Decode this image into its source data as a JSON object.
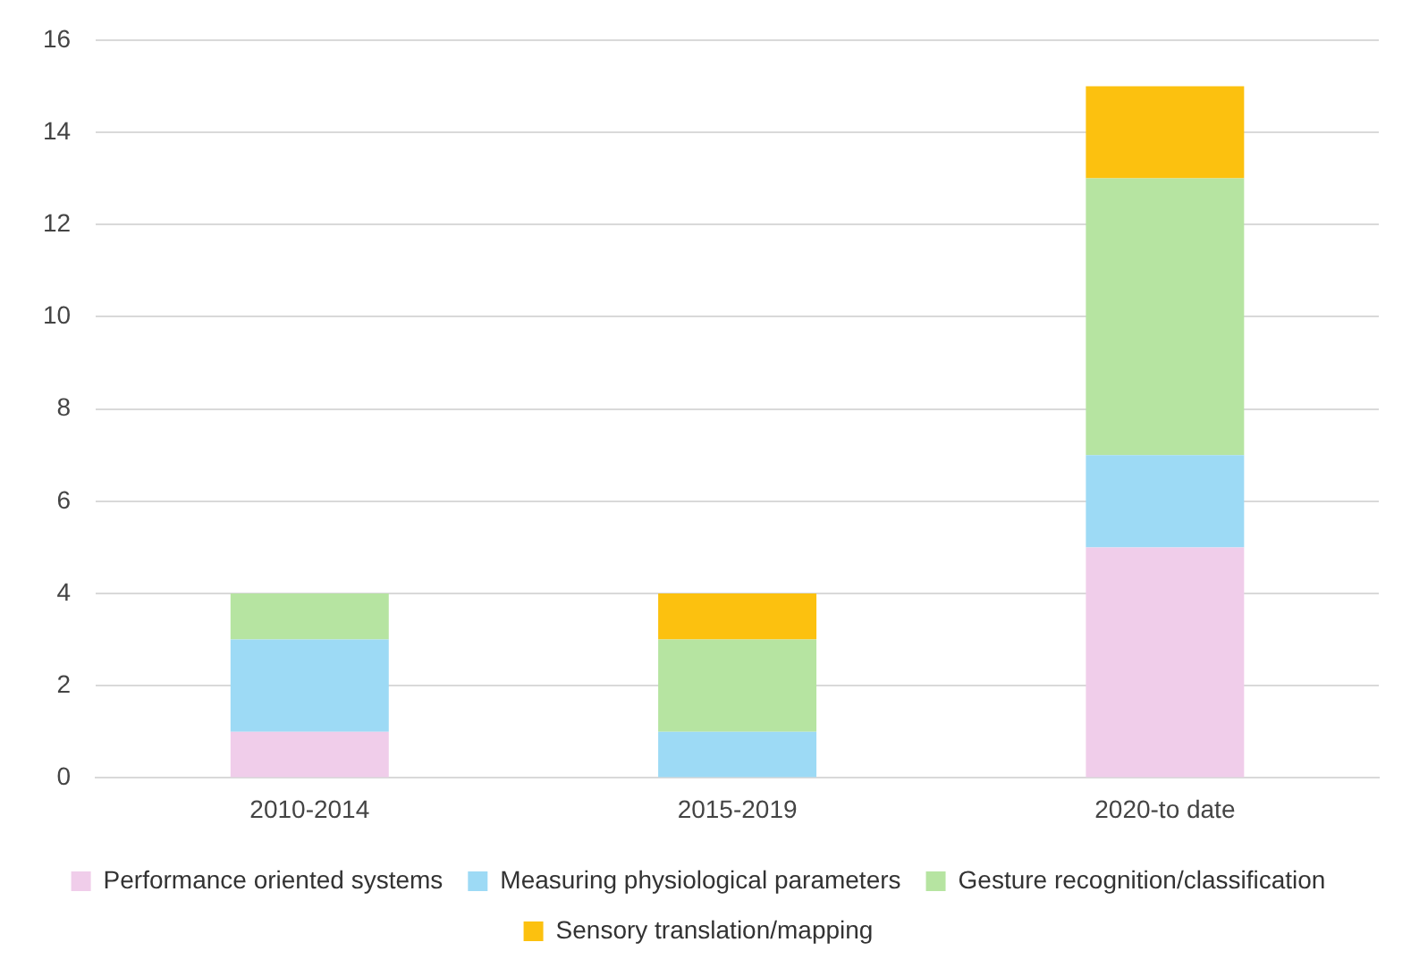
{
  "chart_data": {
    "type": "bar",
    "stacked": true,
    "categories": [
      "2010-2014",
      "2015-2019",
      "2020-to date"
    ],
    "series": [
      {
        "name": "Performance oriented systems",
        "color": "#f0cdea",
        "values": [
          1,
          0,
          5
        ]
      },
      {
        "name": "Measuring physiological parameters",
        "color": "#9ddaf5",
        "values": [
          2,
          1,
          2
        ]
      },
      {
        "name": "Gesture recognition/classification",
        "color": "#b6e4a1",
        "values": [
          1,
          2,
          6
        ]
      },
      {
        "name": "Sensory translation/mapping",
        "color": "#fcc10f",
        "values": [
          0,
          1,
          2
        ]
      }
    ],
    "ylim": [
      0,
      16
    ],
    "yticks": [
      0,
      2,
      4,
      6,
      8,
      10,
      12,
      14,
      16
    ],
    "grid": "y",
    "legend": "bottom"
  }
}
